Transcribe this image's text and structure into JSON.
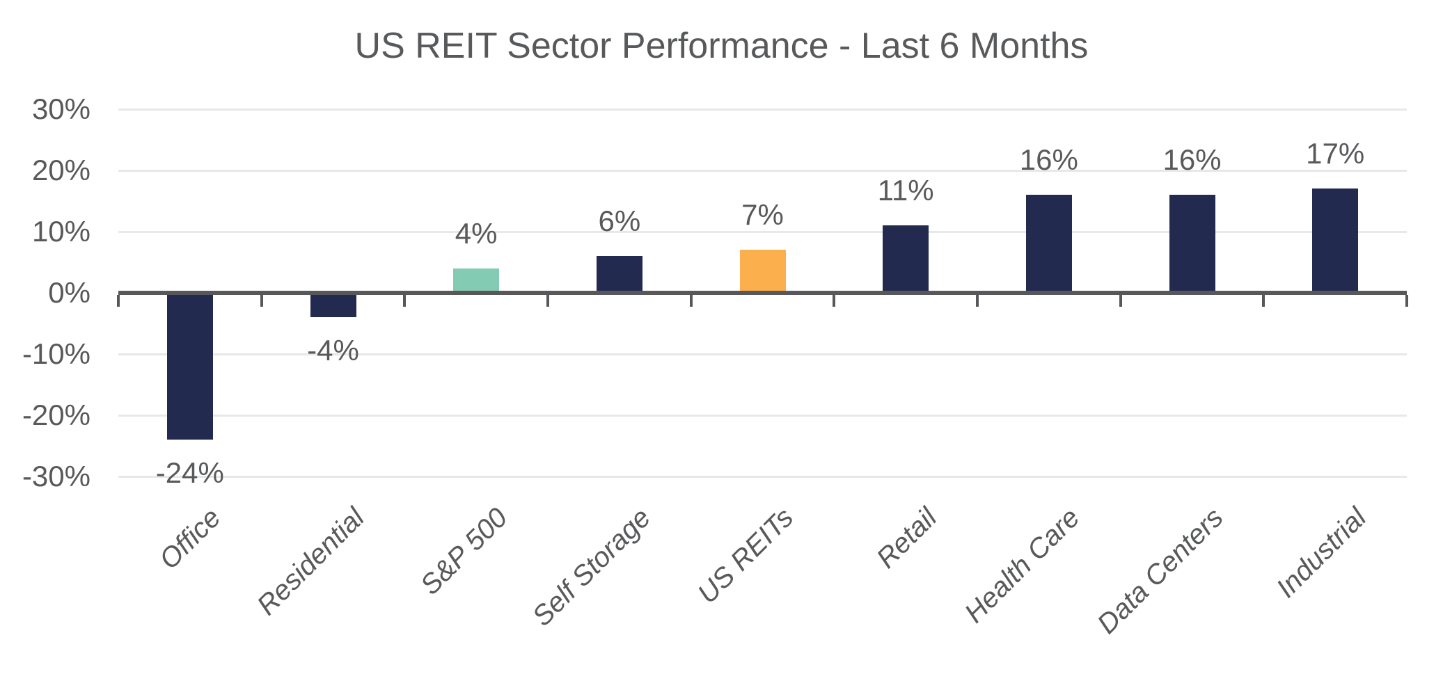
{
  "chart_data": {
    "type": "bar",
    "title": "US REIT Sector Performance - Last 6 Months",
    "categories": [
      "Office",
      "Residential",
      "S&P 500",
      "Self Storage",
      "US REITs",
      "Retail",
      "Health Care",
      "Data Centers",
      "Industrial"
    ],
    "values": [
      -24,
      -4,
      4,
      6,
      7,
      11,
      16,
      16,
      17
    ],
    "value_labels": [
      "-24%",
      "-4%",
      "4%",
      "6%",
      "7%",
      "11%",
      "16%",
      "16%",
      "17%"
    ],
    "bar_colors": [
      "#232A4F",
      "#232A4F",
      "#84CBB3",
      "#232A4F",
      "#FBAF4D",
      "#232A4F",
      "#232A4F",
      "#232A4F",
      "#232A4F"
    ],
    "y_ticks": [
      {
        "label": "30%",
        "value": 30
      },
      {
        "label": "20%",
        "value": 20
      },
      {
        "label": "10%",
        "value": 10
      },
      {
        "label": "0%",
        "value": 0
      },
      {
        "label": "-10%",
        "value": -10
      },
      {
        "label": "-20%",
        "value": -20
      },
      {
        "label": "-30%",
        "value": -30
      }
    ],
    "ylim": [
      -30,
      30
    ],
    "xlabel": "",
    "ylabel": "",
    "grid": true,
    "legend": false,
    "x_label_rotation_deg": -45,
    "colors": {
      "default_bar": "#232A4F",
      "sp500_bar": "#84CBB3",
      "us_reits_bar": "#FBAF4D",
      "grid": "#E8E8E8",
      "axis": "#58585A",
      "text": "#58595B",
      "background": "#FFFFFF"
    }
  }
}
